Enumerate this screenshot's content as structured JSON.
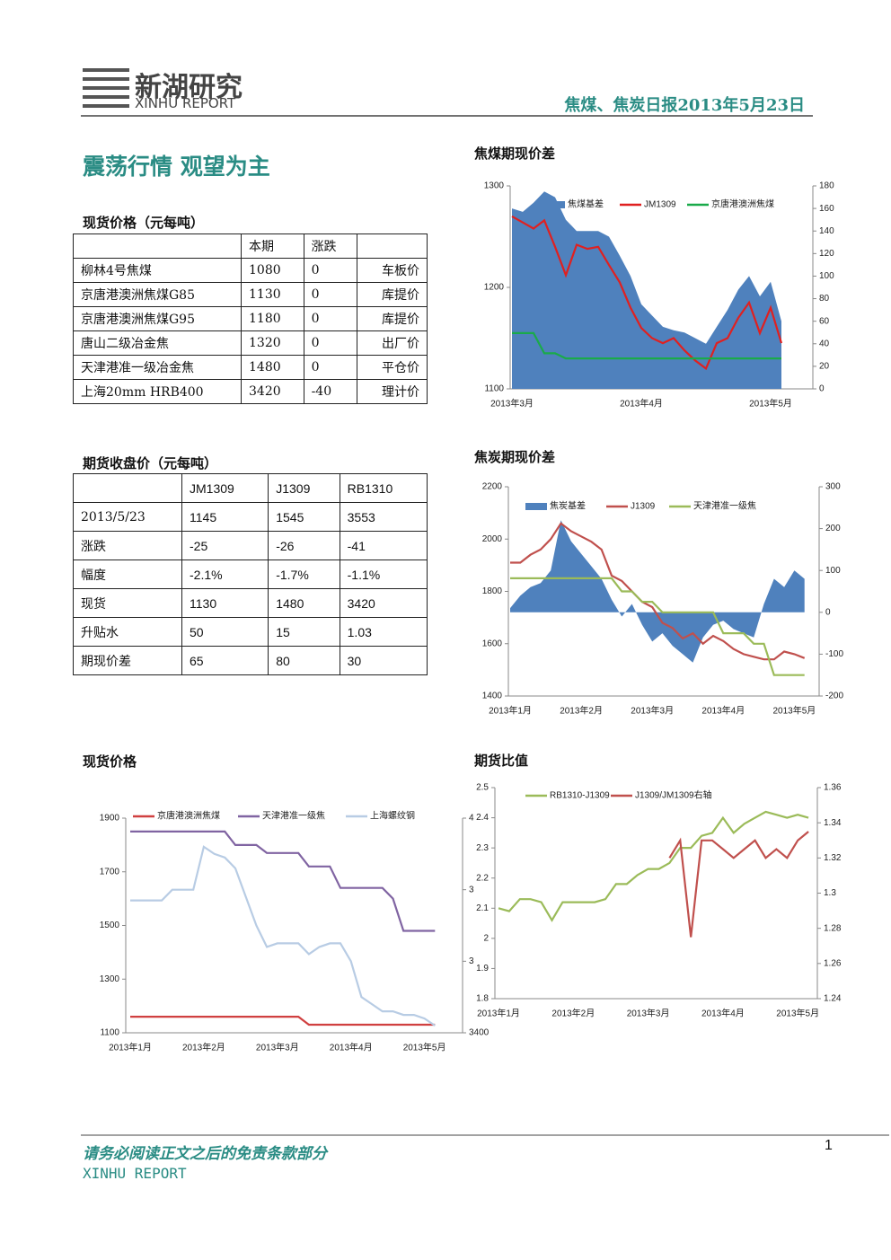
{
  "header": {
    "brand_cn": "新湖研究",
    "brand_en": "XINHU REPORT",
    "report_title": "焦煤、焦炭日报2013年5月23日"
  },
  "headline": "震荡行情 观望为主",
  "spot_table": {
    "title": "现货价格（元每吨）",
    "columns": [
      "本期",
      "涨跌"
    ],
    "rows": [
      [
        "柳林4号焦煤",
        1080,
        0,
        "车板价"
      ],
      [
        "京唐港澳洲焦煤G85",
        1130,
        0,
        "库提价"
      ],
      [
        "京唐港澳洲焦煤G95",
        1180,
        0,
        "库提价"
      ],
      [
        "唐山二级冶金焦",
        1320,
        0,
        "出厂价"
      ],
      [
        "天津港准一级冶金焦",
        1480,
        0,
        "平仓价"
      ],
      [
        "上海20mm HRB400",
        3420,
        -40,
        "理计价"
      ]
    ]
  },
  "futures_table": {
    "title": "期货收盘价（元每吨）",
    "columns": [
      "JM1309",
      "J1309",
      "RB1310"
    ],
    "rows": [
      [
        "2013/5/23",
        1145,
        1545,
        3553
      ],
      [
        "涨跌",
        -25,
        -26,
        -41
      ],
      [
        "幅度",
        "-2.1%",
        "-1.7%",
        "-1.1%"
      ],
      [
        "现货",
        1130,
        1480,
        3420
      ],
      [
        "升贴水",
        50,
        15,
        1.03
      ],
      [
        "期现价差",
        65,
        80,
        30
      ]
    ]
  },
  "chart_data": [
    {
      "type": "line",
      "title": "焦煤期现价差",
      "categories": [
        "2013年3月",
        null,
        null,
        null,
        null,
        null,
        null,
        null,
        null,
        null,
        null,
        null,
        "2013年4月",
        null,
        null,
        null,
        null,
        null,
        null,
        null,
        null,
        null,
        null,
        null,
        "2013年5月",
        null
      ],
      "ylim": [
        1100,
        1300
      ],
      "yticks": [
        1100,
        1200,
        1300
      ],
      "y2lim": [
        0,
        180
      ],
      "y2ticks": [
        0,
        20,
        40,
        60,
        80,
        100,
        120,
        140,
        160,
        180
      ],
      "series": [
        {
          "name": "焦煤基差",
          "type": "area",
          "axis": "y2",
          "color": "#4f81bd",
          "values": [
            160,
            157,
            165,
            175,
            170,
            150,
            140,
            140,
            140,
            135,
            118,
            100,
            75,
            65,
            55,
            52,
            50,
            45,
            40,
            55,
            70,
            88,
            100,
            82,
            95,
            60
          ]
        },
        {
          "name": "JM1309",
          "type": "line",
          "color": "#e02020",
          "values": [
            1270,
            1264,
            1258,
            1266,
            1240,
            1212,
            1242,
            1238,
            1240,
            1222,
            1205,
            1180,
            1160,
            1150,
            1145,
            1150,
            1138,
            1128,
            1120,
            1145,
            1150,
            1170,
            1185,
            1155,
            1180,
            1145
          ]
        },
        {
          "name": "京唐港澳洲焦煤",
          "type": "line",
          "color": "#1aaa4a",
          "values": [
            1155,
            1155,
            1155,
            1135,
            1135,
            1130,
            1130,
            1130,
            1130,
            1130,
            1130,
            1130,
            1130,
            1130,
            1130,
            1130,
            1130,
            1130,
            1130,
            1130,
            1130,
            1130,
            1130,
            1130,
            1130,
            1130
          ]
        }
      ]
    },
    {
      "type": "line",
      "title": "焦炭期现价差",
      "categories": [
        "2013年1月",
        null,
        null,
        null,
        null,
        null,
        null,
        "2013年2月",
        null,
        null,
        null,
        null,
        null,
        null,
        "2013年3月",
        null,
        null,
        null,
        null,
        null,
        null,
        "2013年4月",
        null,
        null,
        null,
        null,
        null,
        null,
        "2013年5月",
        null
      ],
      "ylim": [
        1400,
        2200
      ],
      "yticks": [
        1400,
        1600,
        1800,
        2000,
        2200
      ],
      "y2lim": [
        -200,
        300
      ],
      "y2ticks": [
        -200,
        -100,
        0,
        100,
        200,
        300
      ],
      "series": [
        {
          "name": "焦炭基差",
          "type": "area",
          "axis": "y2",
          "color": "#4f81bd",
          "values": [
            10,
            40,
            60,
            70,
            100,
            220,
            170,
            140,
            110,
            80,
            30,
            -10,
            20,
            -30,
            -70,
            -50,
            -80,
            -100,
            -120,
            -60,
            -30,
            -20,
            -40,
            -50,
            -60,
            20,
            80,
            60,
            100,
            80
          ]
        },
        {
          "name": "J1309",
          "type": "line",
          "color": "#c0504d",
          "values": [
            1910,
            1910,
            1940,
            1960,
            2000,
            2060,
            2030,
            2010,
            1990,
            1960,
            1860,
            1840,
            1800,
            1760,
            1740,
            1680,
            1660,
            1620,
            1640,
            1600,
            1630,
            1610,
            1580,
            1560,
            1550,
            1540,
            1540,
            1570,
            1560,
            1545
          ]
        },
        {
          "name": "天津港准一级焦",
          "type": "line",
          "color": "#9bbb59",
          "values": [
            1850,
            1850,
            1850,
            1850,
            1850,
            1850,
            1850,
            1850,
            1850,
            1850,
            1850,
            1800,
            1800,
            1760,
            1760,
            1720,
            1720,
            1720,
            1720,
            1720,
            1720,
            1640,
            1640,
            1640,
            1600,
            1600,
            1480,
            1480,
            1480,
            1480
          ]
        }
      ]
    },
    {
      "type": "line",
      "title": "现货价格",
      "categories": [
        "2013年1月",
        null,
        null,
        null,
        null,
        null,
        null,
        "2013年2月",
        null,
        null,
        null,
        null,
        null,
        null,
        "2013年3月",
        null,
        null,
        null,
        null,
        null,
        null,
        "2013年4月",
        null,
        null,
        null,
        null,
        null,
        null,
        "2013年5月",
        null
      ],
      "ylim": [
        1100,
        1900
      ],
      "yticks": [
        1100,
        1300,
        1500,
        1700,
        1900
      ],
      "y2lim": [
        3400,
        4000
      ],
      "y2ticks": [
        {
          "value": 4000,
          "label": "4"
        },
        {
          "value": 3800,
          "label": "3"
        },
        {
          "value": 3600,
          "label": "3"
        },
        3400
      ],
      "series": [
        {
          "name": "京唐港澳洲焦煤",
          "type": "line",
          "color": "#d04040",
          "values": [
            1160,
            1160,
            1160,
            1160,
            1160,
            1160,
            1160,
            1160,
            1160,
            1160,
            1160,
            1160,
            1160,
            1160,
            1160,
            1160,
            1160,
            1130,
            1130,
            1130,
            1130,
            1130,
            1130,
            1130,
            1130,
            1130,
            1130,
            1130,
            1130,
            1130
          ]
        },
        {
          "name": "天津港准一级焦",
          "type": "line",
          "color": "#8064a2",
          "values": [
            1850,
            1850,
            1850,
            1850,
            1850,
            1850,
            1850,
            1850,
            1850,
            1850,
            1800,
            1800,
            1800,
            1770,
            1770,
            1770,
            1770,
            1720,
            1720,
            1720,
            1640,
            1640,
            1640,
            1640,
            1640,
            1600,
            1480,
            1480,
            1480,
            1480
          ]
        },
        {
          "name": "上海螺纹钢",
          "type": "line",
          "axis": "y2",
          "color": "#b8cce4",
          "values": [
            3770,
            3770,
            3770,
            3770,
            3800,
            3800,
            3800,
            3920,
            3900,
            3890,
            3860,
            3780,
            3700,
            3640,
            3650,
            3650,
            3650,
            3620,
            3640,
            3650,
            3650,
            3600,
            3500,
            3480,
            3460,
            3460,
            3450,
            3450,
            3440,
            3420
          ]
        }
      ]
    },
    {
      "type": "line",
      "title": "期货比值",
      "categories": [
        "2013年1月",
        null,
        null,
        null,
        null,
        null,
        null,
        "2013年2月",
        null,
        null,
        null,
        null,
        null,
        null,
        "2013年3月",
        null,
        null,
        null,
        null,
        null,
        null,
        "2013年4月",
        null,
        null,
        null,
        null,
        null,
        null,
        "2013年5月",
        null
      ],
      "ylim": [
        1.8,
        2.5
      ],
      "yticks": [
        1.8,
        1.9,
        2,
        2.1,
        2.2,
        2.3,
        2.4,
        2.5
      ],
      "y2lim": [
        1.24,
        1.36
      ],
      "y2ticks": [
        1.24,
        1.26,
        1.28,
        1.3,
        1.32,
        1.34,
        1.36
      ],
      "series": [
        {
          "name": "RB1310-J1309",
          "type": "line",
          "color": "#9bbb59",
          "values": [
            2.1,
            2.09,
            2.13,
            2.13,
            2.12,
            2.06,
            2.12,
            2.12,
            2.12,
            2.12,
            2.13,
            2.18,
            2.18,
            2.21,
            2.23,
            2.23,
            2.25,
            2.3,
            2.3,
            2.34,
            2.35,
            2.4,
            2.35,
            2.38,
            2.4,
            2.42,
            2.41,
            2.4,
            2.41,
            2.4
          ]
        },
        {
          "name": "J1309/JM1309右轴",
          "type": "line",
          "axis": "y2",
          "color": "#c0504d",
          "values": [
            null,
            null,
            null,
            null,
            null,
            null,
            null,
            null,
            null,
            null,
            null,
            null,
            null,
            null,
            null,
            null,
            1.32,
            1.33,
            1.275,
            1.33,
            1.33,
            1.325,
            1.32,
            1.325,
            1.33,
            1.32,
            1.325,
            1.32,
            1.33,
            1.335
          ]
        }
      ]
    }
  ],
  "footer": {
    "disclaimer": "请务必阅读正文之后的免责条款部分",
    "brand": "XINHU REPORT",
    "page": 1
  }
}
